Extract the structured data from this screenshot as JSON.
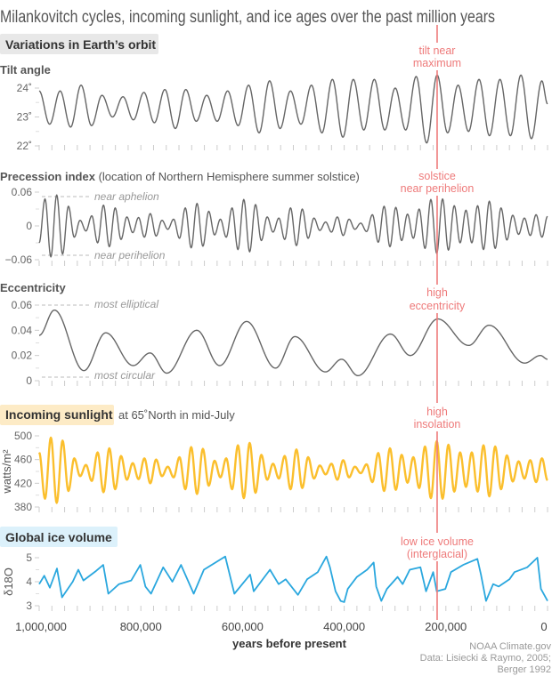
{
  "title": "Milankovitch cycles, incoming sunlight, and ice ages over the past million years",
  "sections": {
    "orbit": "Variations in Earth’s orbit",
    "tilt": "Tilt angle",
    "precession_bold": "Precession index",
    "precession_rest": " (location of Northern Hemisphere summer solstice)",
    "eccentricity": "Eccentricity",
    "sunlight_bold": "Incoming sunlight",
    "sunlight_rest": "at 65˚North in mid-July",
    "ice": "Global ice volume"
  },
  "guides": {
    "near_aphelion": "near aphelion",
    "near_perihelion": "near perihelion",
    "most_elliptical": "most elliptical",
    "most_circular": "most circular"
  },
  "annotation": {
    "year": 217200,
    "color": "#ee7a7a",
    "tilt": [
      "tilt near",
      "maximum"
    ],
    "precession": [
      "solstice",
      "near perihelion"
    ],
    "eccentricity": [
      "high",
      "eccentricity"
    ],
    "sunlight": [
      "high",
      "insolation"
    ],
    "ice": [
      "low ice volume",
      "(interglacial)"
    ]
  },
  "x_axis": {
    "label": "years before present",
    "ticks": [
      {
        "value": 1000000,
        "label": "1,000,000"
      },
      {
        "value": 800000,
        "label": "800,000"
      },
      {
        "value": 600000,
        "label": "600,000"
      },
      {
        "value": 400000,
        "label": "400,000"
      },
      {
        "value": 200000,
        "label": "200,000"
      },
      {
        "value": 0,
        "label": "0"
      }
    ],
    "range": [
      1000000,
      0
    ]
  },
  "credits": [
    "NOAA Climate.gov",
    "Data: Lisiecki & Raymo, 2005;",
    "Berger 1992"
  ],
  "chart_data": [
    {
      "type": "line",
      "id": "tilt",
      "title": "Tilt angle",
      "ylabel": "",
      "ylim": [
        22,
        24
      ],
      "color": "#666666",
      "interpolation": "extrema",
      "yticks": [
        {
          "value": 24,
          "label": "24˚"
        },
        {
          "value": 23,
          "label": "23˚"
        },
        {
          "value": 22,
          "label": "22˚"
        }
      ],
      "x": [
        1000000,
        979400,
        958800,
        938200,
        917600,
        897000,
        876400,
        855800,
        835200,
        814600,
        794000,
        773400,
        752800,
        732200,
        711600,
        691000,
        670400,
        649800,
        629200,
        608600,
        588000,
        567400,
        546800,
        526200,
        505600,
        485000,
        464400,
        443800,
        423200,
        402600,
        382000,
        361400,
        340800,
        320200,
        299600,
        279000,
        258400,
        237800,
        217200,
        196600,
        176000,
        155400,
        134800,
        114200,
        93600,
        73000,
        52400,
        31800,
        11200,
        0
      ],
      "y": [
        23.9,
        22.75,
        23.9,
        22.65,
        24.1,
        22.7,
        23.75,
        23.0,
        23.7,
        22.9,
        23.85,
        22.8,
        23.95,
        22.6,
        23.95,
        22.85,
        23.75,
        22.85,
        23.9,
        22.7,
        24.1,
        22.45,
        24.25,
        22.6,
        23.9,
        22.75,
        24.1,
        22.45,
        24.3,
        22.3,
        24.3,
        22.55,
        24.3,
        22.55,
        24.0,
        22.55,
        24.4,
        22.1,
        24.45,
        22.45,
        24.1,
        22.5,
        24.3,
        22.35,
        24.3,
        22.35,
        24.45,
        22.25,
        24.25,
        23.45
      ]
    },
    {
      "type": "line",
      "id": "precession",
      "title": "Precession index (location of Northern Hemisphere summer solstice)",
      "ylim": [
        -0.06,
        0.06
      ],
      "color": "#666666",
      "interpolation": "extrema",
      "yticks": [
        {
          "value": 0.06,
          "label": "0.06"
        },
        {
          "value": 0,
          "label": "0"
        },
        {
          "value": -0.06,
          "label": "−0.06"
        }
      ],
      "x": [
        1000000,
        988500,
        977000,
        965500,
        954000,
        942500,
        931000,
        919500,
        908000,
        896500,
        885000,
        873500,
        862000,
        850500,
        839000,
        827500,
        816000,
        804500,
        793000,
        781500,
        770000,
        758500,
        747000,
        735500,
        724000,
        712500,
        701000,
        689500,
        678000,
        666500,
        655000,
        643500,
        632000,
        620500,
        609000,
        597500,
        586000,
        574500,
        563000,
        551500,
        540000,
        528500,
        517000,
        505500,
        494000,
        482500,
        471000,
        459500,
        448000,
        436500,
        425000,
        413500,
        402000,
        390500,
        379000,
        367500,
        356000,
        344500,
        333000,
        321500,
        310000,
        298500,
        287000,
        275500,
        264000,
        252500,
        241000,
        229500,
        218000,
        206500,
        195000,
        183500,
        172000,
        160500,
        149000,
        137500,
        126000,
        114500,
        103000,
        91500,
        80000,
        68500,
        57000,
        45500,
        34000,
        22500,
        11000,
        0
      ],
      "y": [
        -0.03,
        0.048,
        -0.055,
        0.055,
        -0.05,
        0.035,
        -0.02,
        0.01,
        -0.009,
        0.018,
        -0.03,
        0.037,
        -0.037,
        0.032,
        -0.024,
        0.016,
        -0.012,
        0.015,
        -0.02,
        0.022,
        -0.018,
        0.01,
        -0.006,
        0.012,
        -0.022,
        0.032,
        -0.039,
        0.04,
        -0.036,
        0.026,
        -0.016,
        0.012,
        -0.02,
        0.032,
        -0.042,
        0.047,
        -0.046,
        0.038,
        -0.026,
        0.016,
        -0.011,
        0.014,
        -0.024,
        0.032,
        -0.035,
        0.03,
        -0.022,
        0.014,
        -0.008,
        0.007,
        -0.011,
        0.016,
        -0.017,
        0.012,
        -0.006,
        0.005,
        -0.01,
        0.02,
        -0.029,
        0.035,
        -0.037,
        0.033,
        -0.026,
        0.021,
        -0.022,
        0.03,
        -0.04,
        0.047,
        -0.049,
        0.048,
        -0.043,
        0.036,
        -0.03,
        0.028,
        -0.03,
        0.036,
        -0.042,
        0.044,
        -0.04,
        0.032,
        -0.025,
        0.019,
        -0.015,
        0.014,
        -0.017,
        0.02,
        -0.02,
        0.017
      ]
    },
    {
      "type": "line",
      "id": "eccentricity",
      "title": "Eccentricity",
      "ylim": [
        0,
        0.06
      ],
      "color": "#666666",
      "interpolation": "extrema",
      "yticks": [
        {
          "value": 0.06,
          "label": "0.06"
        },
        {
          "value": 0.04,
          "label": "0.04"
        },
        {
          "value": 0.02,
          "label": "0.02"
        },
        {
          "value": 0,
          "label": "0"
        }
      ],
      "x": [
        1000000,
        970000,
        912000,
        869000,
        815000,
        782000,
        749000,
        690000,
        645000,
        592000,
        535000,
        497000,
        437000,
        405000,
        373000,
        309000,
        270000,
        216000,
        155000,
        115000,
        45000,
        14000,
        0
      ],
      "y": [
        0.036,
        0.056,
        0.008,
        0.038,
        0.012,
        0.022,
        0.006,
        0.04,
        0.012,
        0.047,
        0.01,
        0.035,
        0.007,
        0.017,
        0.004,
        0.037,
        0.02,
        0.049,
        0.028,
        0.044,
        0.014,
        0.02,
        0.017
      ]
    },
    {
      "type": "line",
      "id": "sunlight",
      "title": "Incoming sunlight at 65˚North in mid-July",
      "ylabel": "watts/m²",
      "ylim": [
        380,
        500
      ],
      "color": "#fbbf2d",
      "interpolation": "extrema",
      "yticks": [
        {
          "value": 500,
          "label": "500"
        },
        {
          "value": 460,
          "label": "460"
        },
        {
          "value": 420,
          "label": "420"
        },
        {
          "value": 380,
          "label": "380"
        }
      ],
      "x_same_as": "precession",
      "y": [
        472,
        394,
        497,
        387,
        492,
        407,
        462,
        432,
        451,
        424,
        472,
        405,
        479,
        410,
        466,
        426,
        454,
        427,
        462,
        420,
        460,
        432,
        448,
        430,
        464,
        410,
        481,
        402,
        478,
        416,
        458,
        430,
        462,
        410,
        484,
        395,
        488,
        404,
        468,
        426,
        453,
        428,
        466,
        410,
        477,
        412,
        464,
        428,
        450,
        435,
        453,
        426,
        459,
        430,
        448,
        437,
        452,
        422,
        471,
        407,
        479,
        409,
        468,
        421,
        464,
        412,
        482,
        395,
        491,
        394,
        485,
        406,
        472,
        414,
        472,
        406,
        484,
        398,
        482,
        410,
        467,
        423,
        457,
        428,
        459,
        422,
        462,
        425
      ]
    },
    {
      "type": "line",
      "id": "ice",
      "title": "Global ice volume",
      "ylabel": "δ18O",
      "ylim": [
        3,
        5
      ],
      "color": "#2aa7de",
      "interpolation": "linear",
      "yticks": [
        {
          "value": 5,
          "label": "5"
        },
        {
          "value": 4,
          "label": "4"
        },
        {
          "value": 3,
          "label": "3"
        }
      ],
      "x": [
        1000000,
        990000,
        979000,
        965000,
        955000,
        934000,
        923000,
        913000,
        888000,
        874000,
        864000,
        843000,
        819000,
        801000,
        791000,
        780000,
        756000,
        738000,
        721000,
        696000,
        676000,
        634000,
        616000,
        585000,
        578000,
        546000,
        529000,
        515000,
        491000,
        473000,
        452000,
        435000,
        428000,
        417000,
        407000,
        400000,
        393000,
        375000,
        355000,
        342000,
        337000,
        327000,
        316000,
        295000,
        285000,
        271000,
        250000,
        239000,
        225000,
        218000,
        201000,
        190000,
        166000,
        138000,
        131000,
        121000,
        107000,
        96000,
        75000,
        65000,
        40000,
        20000,
        13000,
        0
      ],
      "y": [
        3.9,
        4.25,
        3.75,
        4.55,
        3.35,
        4.0,
        4.5,
        4.05,
        4.45,
        4.7,
        3.5,
        3.9,
        4.05,
        4.7,
        3.8,
        3.5,
        4.6,
        4.0,
        4.7,
        3.5,
        4.5,
        5.05,
        3.5,
        4.3,
        3.6,
        4.5,
        3.9,
        4.1,
        3.45,
        4.1,
        4.4,
        5.05,
        4.6,
        3.6,
        3.2,
        3.15,
        3.7,
        4.2,
        4.5,
        4.8,
        3.8,
        3.2,
        3.7,
        4.2,
        3.9,
        4.5,
        4.6,
        3.6,
        4.4,
        3.6,
        3.7,
        4.4,
        4.7,
        4.95,
        4.3,
        3.2,
        3.9,
        3.8,
        4.1,
        4.4,
        4.6,
        5.0,
        3.7,
        3.2
      ]
    }
  ]
}
